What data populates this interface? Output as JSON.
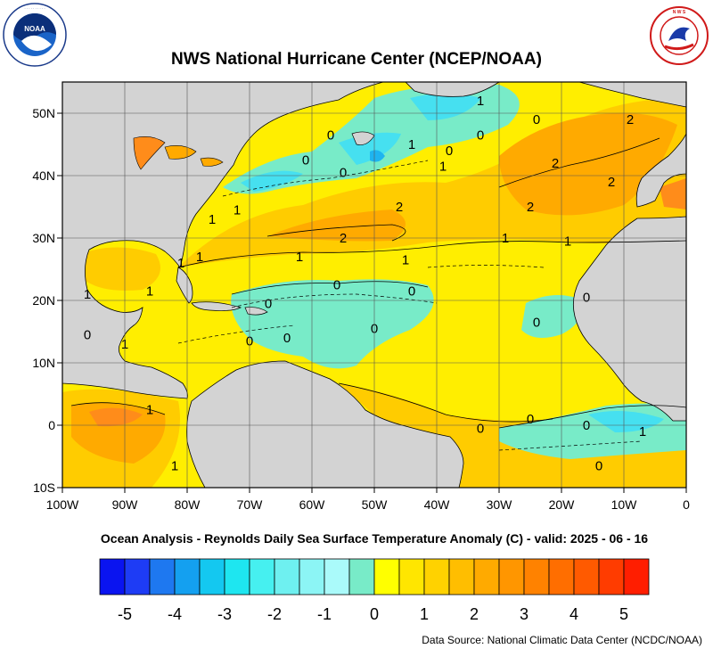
{
  "title": "NWS National Hurricane Center (NCEP/NOAA)",
  "subtitle": "Ocean Analysis - Reynolds Daily Sea Surface Temperature Anomaly (C) - valid: 2025 - 06 - 16",
  "source": "Data Source: National Climatic Data Center (NCDC/NOAA)",
  "logos": {
    "noaa_center": "NOAA",
    "noaa_ring": "NATIONAL OCEANIC AND ATMOSPHERIC ADMINISTRATION · U.S. DEPARTMENT OF COMMERCE",
    "nws_ring": "NATIONAL WEATHER SERVICE"
  },
  "map": {
    "lon_ticks": [
      "100W",
      "90W",
      "80W",
      "70W",
      "60W",
      "50W",
      "40W",
      "30W",
      "20W",
      "10W",
      "0"
    ],
    "lat_ticks": [
      "50N",
      "40N",
      "30N",
      "20N",
      "10N",
      "0",
      "10S"
    ],
    "lon_range": [
      -100,
      0
    ],
    "lat_range": [
      -10,
      55
    ],
    "grid": true,
    "land_color": "#d3d3d3",
    "contour_labels": [
      {
        "text": "0",
        "lon": -67,
        "lat": 19.5
      },
      {
        "text": "0",
        "lon": -56,
        "lat": 22.5
      },
      {
        "text": "0",
        "lon": -44,
        "lat": 21.5
      },
      {
        "text": "0",
        "lon": -50,
        "lat": 15.5
      },
      {
        "text": "0",
        "lon": -64,
        "lat": 14
      },
      {
        "text": "0",
        "lon": -70,
        "lat": 13.5
      },
      {
        "text": "0",
        "lon": -96,
        "lat": 14.5
      },
      {
        "text": "0",
        "lon": -24,
        "lat": 16.5
      },
      {
        "text": "0",
        "lon": -25,
        "lat": 1
      },
      {
        "text": "0",
        "lon": -33,
        "lat": -0.5
      },
      {
        "text": "0",
        "lon": -16,
        "lat": 0
      },
      {
        "text": "0",
        "lon": -14,
        "lat": -6.5
      },
      {
        "text": "0",
        "lon": -24,
        "lat": 49
      },
      {
        "text": "0",
        "lon": -33,
        "lat": 46.5
      },
      {
        "text": "0",
        "lon": -38,
        "lat": 44
      },
      {
        "text": "0",
        "lon": -55,
        "lat": 40.5
      },
      {
        "text": "0",
        "lon": -61,
        "lat": 42.5
      },
      {
        "text": "0",
        "lon": -57,
        "lat": 46.5
      },
      {
        "text": "0",
        "lon": -16,
        "lat": 20.5
      },
      {
        "text": "1",
        "lon": -62,
        "lat": 27
      },
      {
        "text": "1",
        "lon": -45,
        "lat": 26.5
      },
      {
        "text": "1",
        "lon": -29,
        "lat": 30
      },
      {
        "text": "1",
        "lon": -19,
        "lat": 29.5
      },
      {
        "text": "1",
        "lon": -39,
        "lat": 41.5
      },
      {
        "text": "1",
        "lon": -44,
        "lat": 45
      },
      {
        "text": "1",
        "lon": -76,
        "lat": 33
      },
      {
        "text": "1",
        "lon": -72,
        "lat": 34.5
      },
      {
        "text": "1",
        "lon": -81,
        "lat": 26
      },
      {
        "text": "1",
        "lon": -78,
        "lat": 27
      },
      {
        "text": "1",
        "lon": -86,
        "lat": 21.5
      },
      {
        "text": "1",
        "lon": -96,
        "lat": 21
      },
      {
        "text": "1",
        "lon": -90,
        "lat": 13
      },
      {
        "text": "1",
        "lon": -86,
        "lat": 2.5
      },
      {
        "text": "1",
        "lon": -82,
        "lat": -6.5
      },
      {
        "text": "1",
        "lon": -7,
        "lat": -1
      },
      {
        "text": "1",
        "lon": -33,
        "lat": 52
      },
      {
        "text": "2",
        "lon": -55,
        "lat": 30
      },
      {
        "text": "2",
        "lon": -46,
        "lat": 35
      },
      {
        "text": "2",
        "lon": -25,
        "lat": 35
      },
      {
        "text": "2",
        "lon": -21,
        "lat": 42
      },
      {
        "text": "2",
        "lon": -12,
        "lat": 39
      },
      {
        "text": "2",
        "lon": -9,
        "lat": 49
      }
    ]
  },
  "colorbar": {
    "ticks": [
      "-5",
      "-4",
      "-3",
      "-2",
      "-1",
      "0",
      "1",
      "2",
      "3",
      "4",
      "5"
    ],
    "colors": [
      "#0a14f0",
      "#1e3cf5",
      "#1e78f0",
      "#14a0f0",
      "#14c8f0",
      "#1ee6f0",
      "#46f0f0",
      "#6ef0f0",
      "#8cf5f5",
      "#aafafa",
      "#78ebc8",
      "#ffff00",
      "#ffe600",
      "#ffd200",
      "#ffbe00",
      "#ffaa00",
      "#ff9600",
      "#ff8200",
      "#ff6e00",
      "#ff5a00",
      "#ff3c00",
      "#ff1e00"
    ]
  },
  "colors": {
    "near_zero": "#ffee00",
    "warm1": "#ffcc00",
    "warm2": "#ffaa00",
    "warm3": "#ff8c1a",
    "cool1": "#78ebc8",
    "cool2": "#46e0f0",
    "cool3": "#1eb4f0"
  }
}
